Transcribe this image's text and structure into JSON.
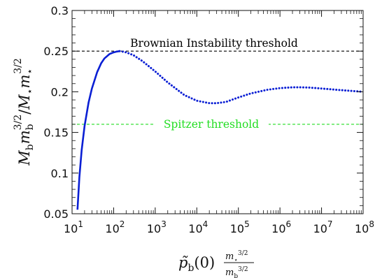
{
  "chart_data": {
    "type": "line",
    "xscale": "log",
    "xlim": [
      10,
      100000000
    ],
    "ylim": [
      0.05,
      0.3
    ],
    "x_tick_labels": [
      {
        "x": 10,
        "base": "10",
        "exp": "1"
      },
      {
        "x": 100,
        "base": "10",
        "exp": "2"
      },
      {
        "x": 1000,
        "base": "10",
        "exp": "3"
      },
      {
        "x": 10000,
        "base": "10",
        "exp": "4"
      },
      {
        "x": 100000,
        "base": "10",
        "exp": "5"
      },
      {
        "x": 1000000,
        "base": "10",
        "exp": "6"
      },
      {
        "x": 10000000,
        "base": "10",
        "exp": "7"
      },
      {
        "x": 100000000,
        "base": "10",
        "exp": "8"
      }
    ],
    "y_tick_labels": [
      {
        "y": 0.05,
        "label": "0.05"
      },
      {
        "y": 0.1,
        "label": "0.1"
      },
      {
        "y": 0.15,
        "label": "0.15"
      },
      {
        "y": 0.2,
        "label": "0.2"
      },
      {
        "y": 0.25,
        "label": "0.25"
      },
      {
        "y": 0.3,
        "label": "0.3"
      }
    ],
    "xlabel": "p̃b(0) m⋆^{3/2}/mb^{3/2}",
    "ylabel": "Mb mb^{3/2}/M⋆ m⋆^{3/2}",
    "series": [
      {
        "style": "solid",
        "color": "#0a1fd4",
        "x": [
          13.5,
          15,
          17,
          20,
          25,
          30,
          40,
          50,
          60,
          80,
          100,
          120,
          140
        ],
        "y": [
          0.055,
          0.095,
          0.128,
          0.158,
          0.187,
          0.204,
          0.224,
          0.235,
          0.241,
          0.2465,
          0.2485,
          0.2495,
          0.25
        ]
      },
      {
        "style": "dotted",
        "color": "#0a1fd4",
        "x": [
          140,
          200,
          300,
          500,
          1000,
          2000,
          5000,
          10000,
          20000,
          30000,
          50000,
          100000,
          200000,
          500000,
          1000000,
          2000000,
          3000000,
          5000000,
          10000000,
          30000000,
          100000000
        ],
        "y": [
          0.25,
          0.2485,
          0.245,
          0.2375,
          0.225,
          0.2115,
          0.196,
          0.189,
          0.186,
          0.186,
          0.1875,
          0.193,
          0.198,
          0.2025,
          0.2045,
          0.2055,
          0.2055,
          0.2052,
          0.204,
          0.202,
          0.2
        ]
      }
    ],
    "annotations": [
      {
        "text": "Brownian Instability threshold",
        "y": 0.25,
        "color": "#000000",
        "line_style": "dashed"
      },
      {
        "text": "Spitzer threshold",
        "y": 0.16,
        "color": "#22dd22",
        "line_style": "dashed"
      }
    ]
  }
}
